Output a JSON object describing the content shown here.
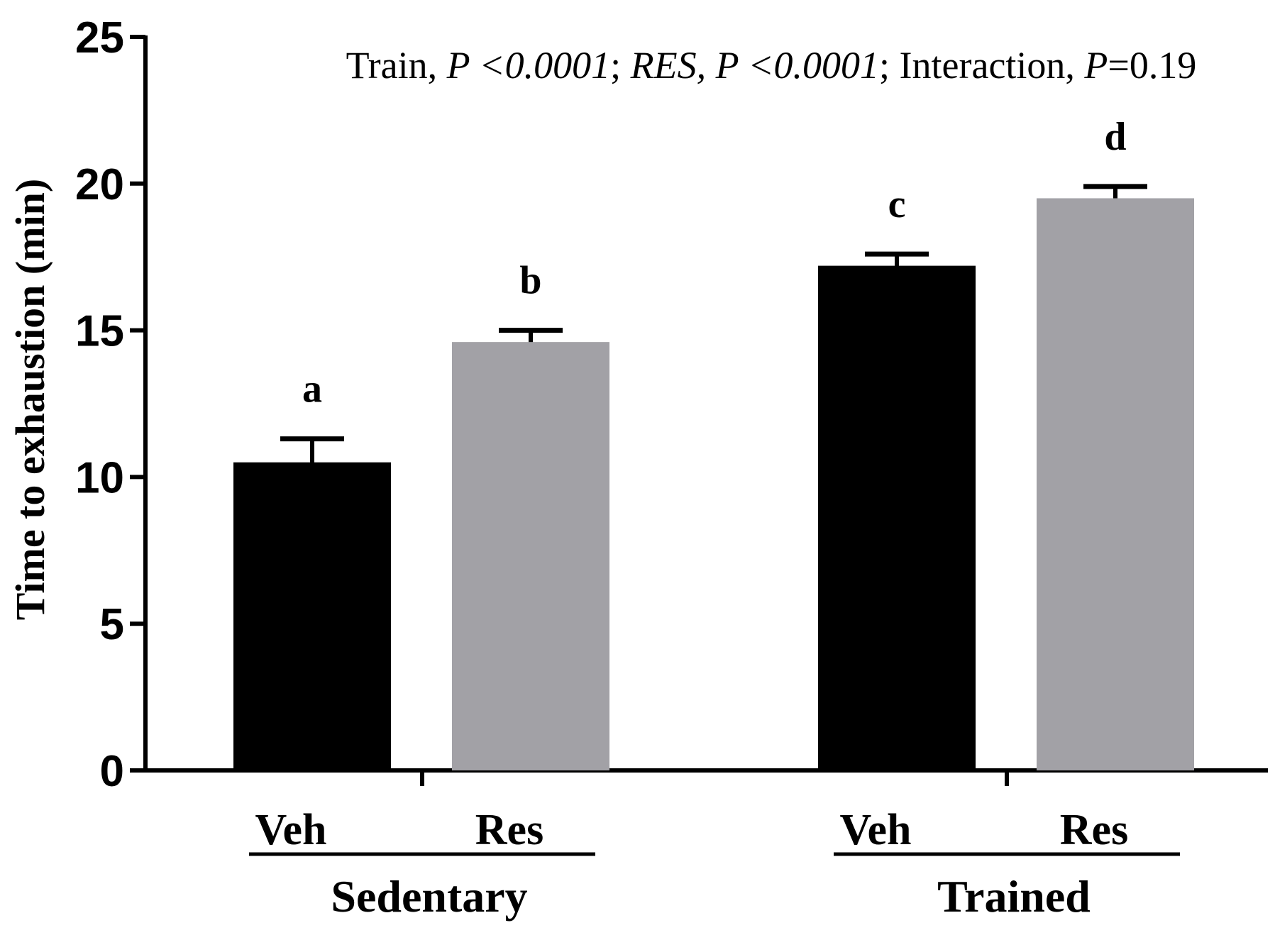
{
  "chart_data": {
    "type": "bar",
    "annotation": {
      "parts": [
        {
          "text": "Train, ",
          "italic": false
        },
        {
          "text": "P <0.0001",
          "italic": true
        },
        {
          "text": "; ",
          "italic": false
        },
        {
          "text": "RES, P <0.0001",
          "italic": true
        },
        {
          "text": "; Interaction, ",
          "italic": false
        },
        {
          "text": "P",
          "italic": true
        },
        {
          "text": "=0.19",
          "italic": false
        }
      ]
    },
    "ylabel": "Time to exhaustion (min)",
    "ylim": [
      0,
      25
    ],
    "yticks": [
      0,
      5,
      10,
      15,
      20,
      25
    ],
    "groups": [
      {
        "name": "Sedentary",
        "bars": [
          {
            "category": "Veh",
            "value": 10.5,
            "error": 0.8,
            "letter": "a",
            "color": "#000000"
          },
          {
            "category": "Res",
            "value": 14.6,
            "error": 0.4,
            "letter": "b",
            "color": "#a2a1a6"
          }
        ]
      },
      {
        "name": "Trained",
        "bars": [
          {
            "category": "Veh",
            "value": 17.2,
            "error": 0.4,
            "letter": "c",
            "color": "#000000"
          },
          {
            "category": "Res",
            "value": 19.5,
            "error": 0.4,
            "letter": "d",
            "color": "#a2a1a6"
          }
        ]
      }
    ]
  }
}
